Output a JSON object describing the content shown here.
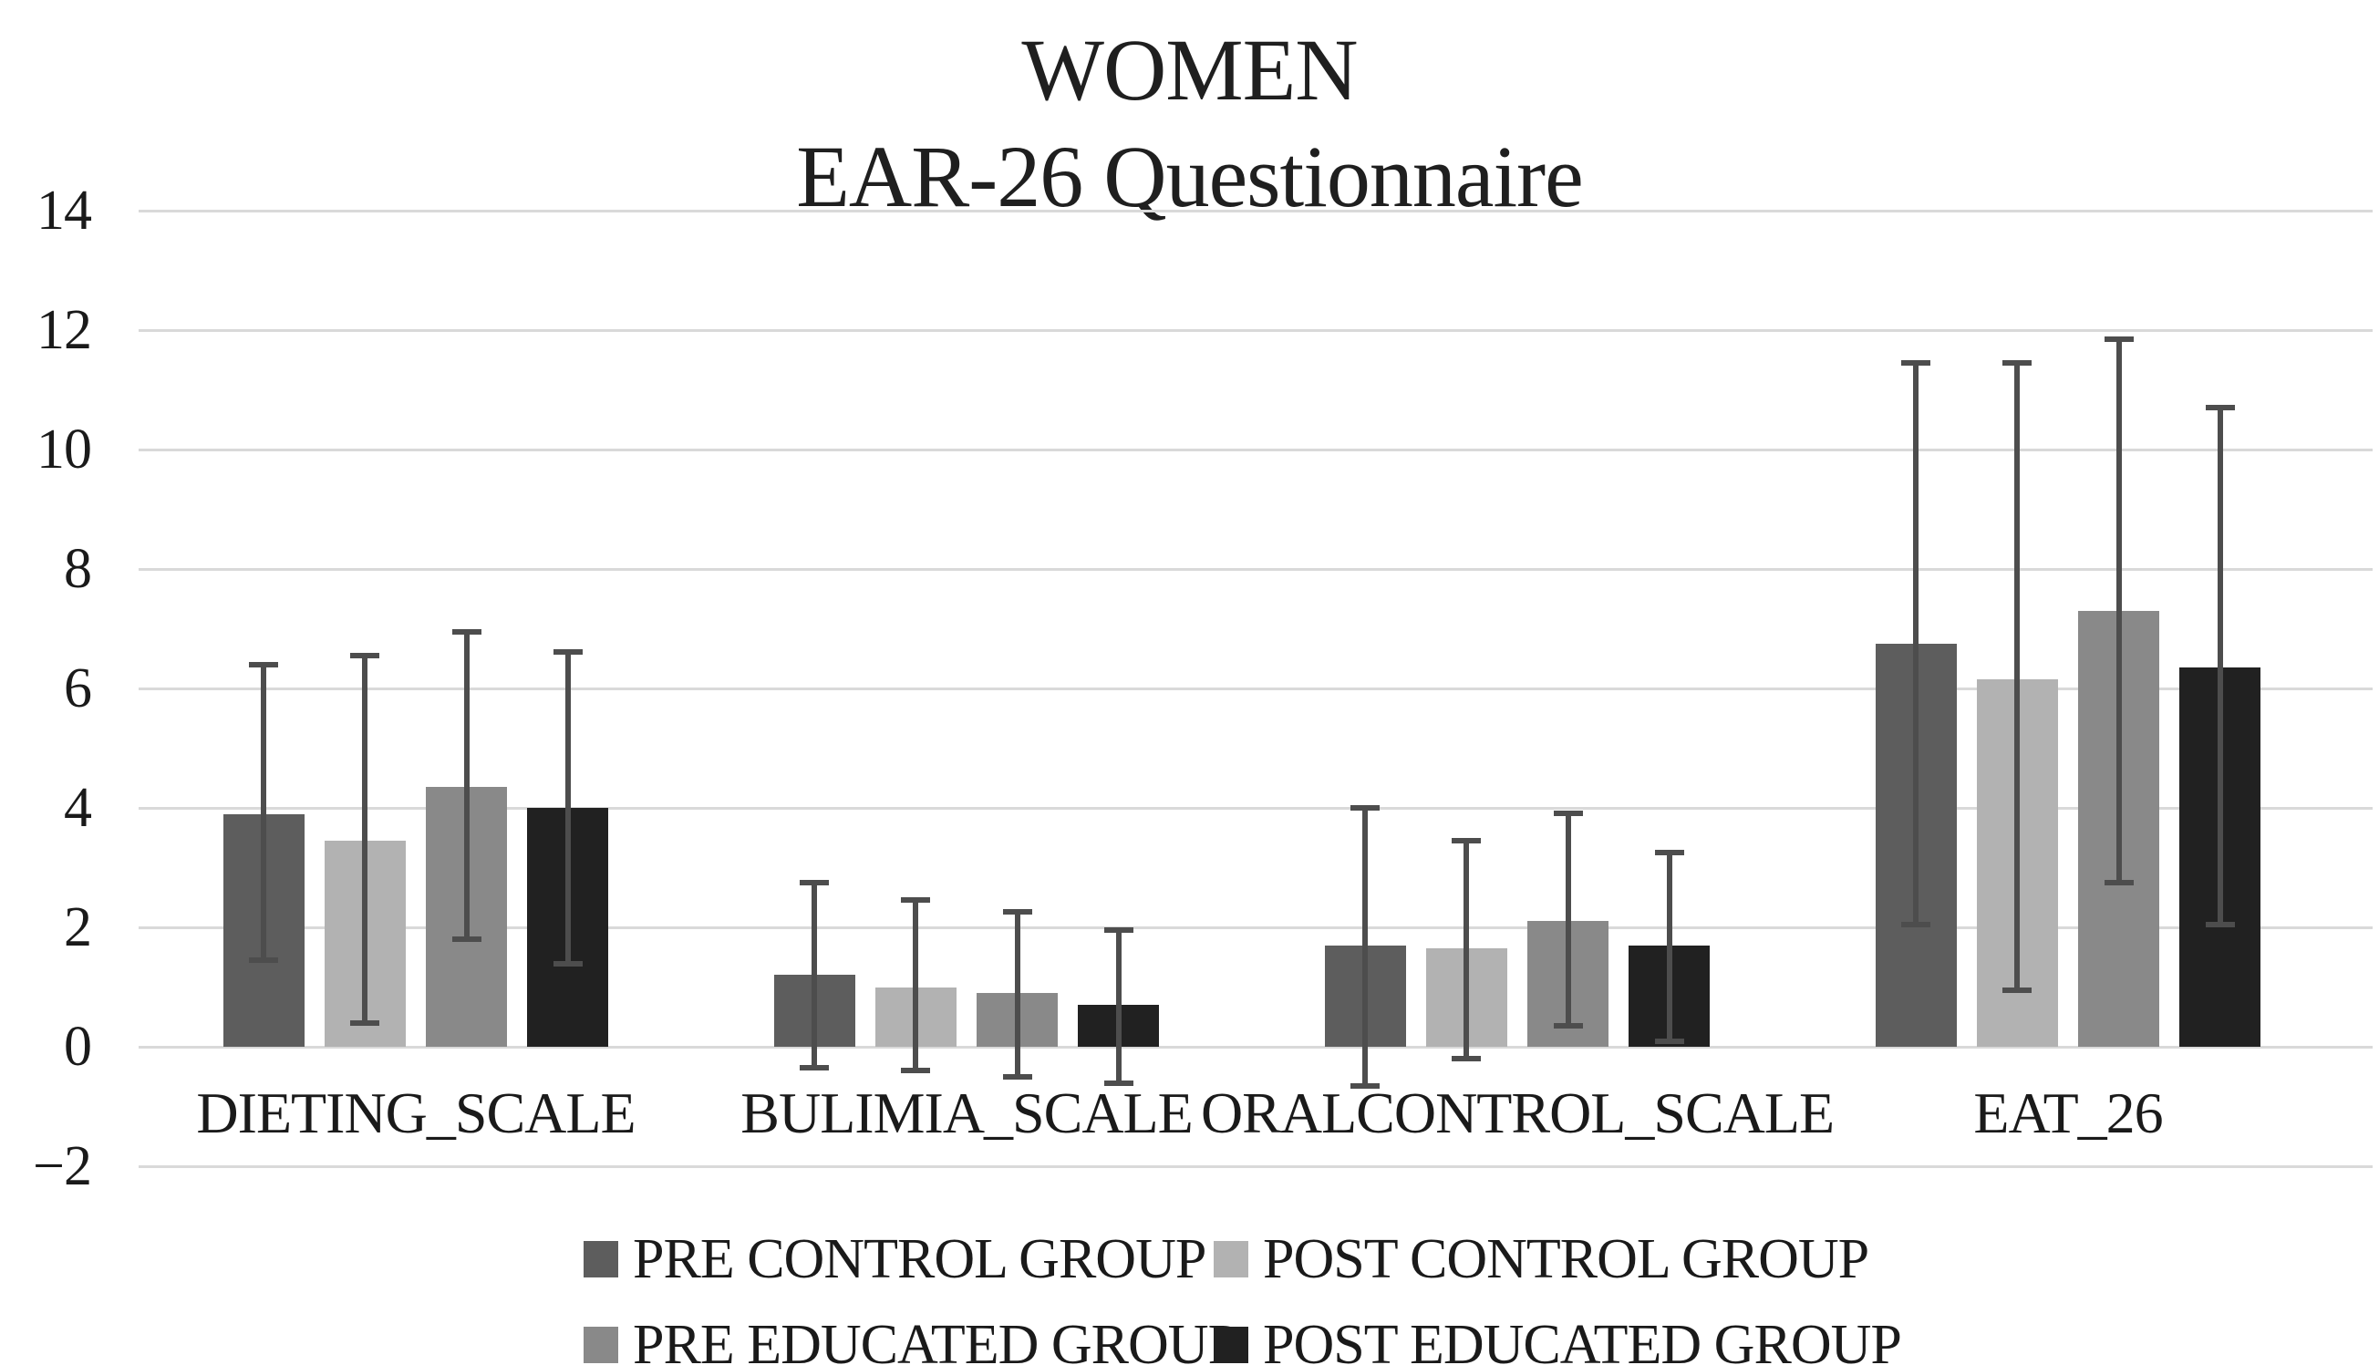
{
  "title": {
    "line1": "WOMEN",
    "line2": "EAR-26 Questionnaire"
  },
  "chart_data": {
    "type": "bar",
    "title": "WOMEN",
    "subtitle": "EAR-26 Questionnaire",
    "categories": [
      "DIETING_SCALE",
      "BULIMIA_SCALE",
      "ORALCONTROL_SCALE",
      "EAT_26"
    ],
    "series": [
      {
        "name": "PRE CONTROL GROUP",
        "color": "#5d5d5d",
        "values": [
          3.9,
          1.2,
          1.7,
          6.75
        ],
        "error_low": [
          1.4,
          -0.4,
          -0.7,
          2.0
        ],
        "error_high": [
          6.45,
          2.8,
          4.05,
          11.5
        ]
      },
      {
        "name": "POST CONTROL GROUP",
        "color": "#b2b2b2",
        "values": [
          3.45,
          1.0,
          1.65,
          6.15
        ],
        "error_low": [
          0.35,
          -0.45,
          -0.25,
          0.9
        ],
        "error_high": [
          6.6,
          2.5,
          3.5,
          11.5
        ]
      },
      {
        "name": "PRE EDUCATED GROUP",
        "color": "#898989",
        "values": [
          4.35,
          0.9,
          2.1,
          7.3
        ],
        "error_low": [
          1.75,
          -0.55,
          0.3,
          2.7
        ],
        "error_high": [
          7.0,
          2.3,
          3.95,
          11.9
        ]
      },
      {
        "name": "POST EDUCATED GROUP",
        "color": "#212121",
        "values": [
          4.0,
          0.7,
          1.7,
          6.35
        ],
        "error_low": [
          1.35,
          -0.65,
          0.05,
          2.0
        ],
        "error_high": [
          6.65,
          2.0,
          3.3,
          10.75
        ]
      }
    ],
    "ylim": [
      -2,
      14
    ],
    "ytick_step": 2,
    "grid": true,
    "legend_position": "bottom",
    "error_bar_color": "#4d4d4d",
    "gridline_color": "#d9d9d9"
  }
}
